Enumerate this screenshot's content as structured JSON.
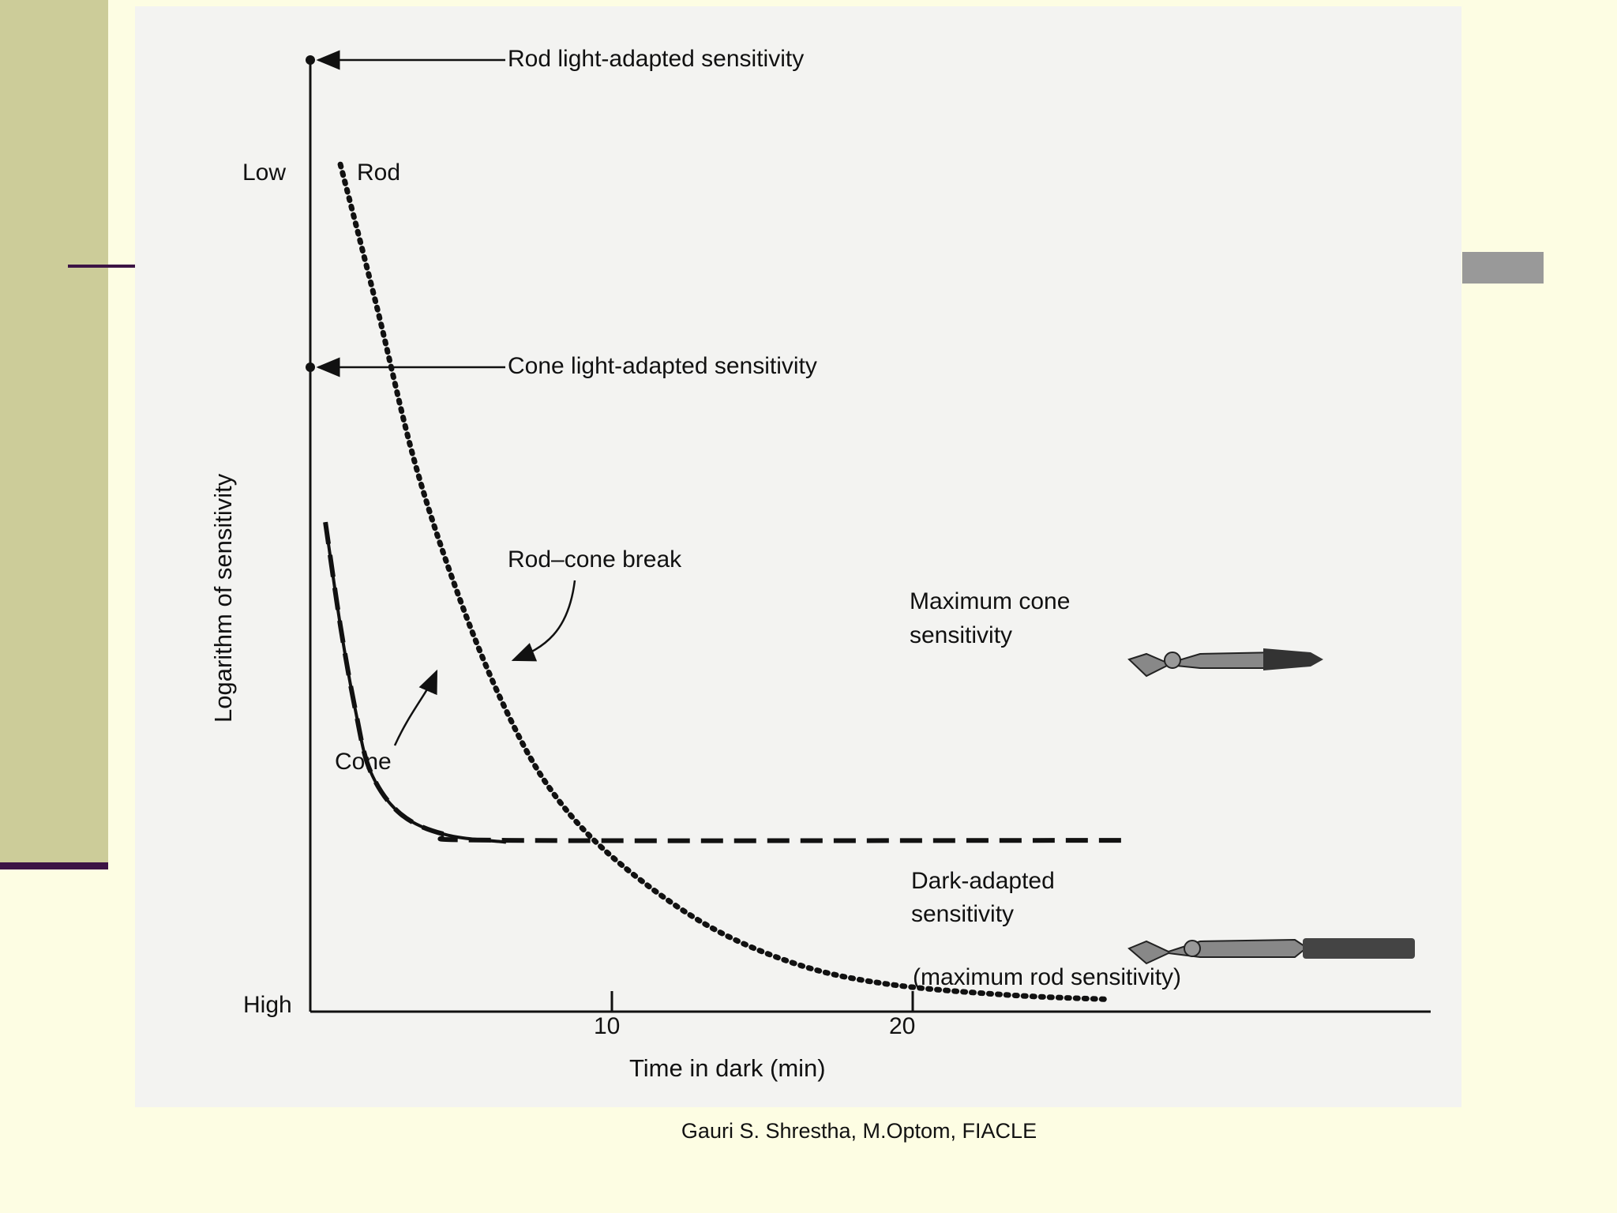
{
  "slide": {
    "credit": "Gauri S. Shrestha, M.Optom, FIACLE",
    "colors": {
      "background": "#fdfde3",
      "left_band": "#cccc99",
      "accent_line": "#3c1445",
      "gray_bar": "#999999"
    }
  },
  "chart_data": {
    "type": "line",
    "xlabel": "Time in dark (min)",
    "ylabel": "Logarithm of sensitivity",
    "x_ticks": [
      10,
      20
    ],
    "x_range": [
      0,
      30
    ],
    "y_range": [
      0,
      10
    ],
    "y_tick_labels": {
      "low": "Low",
      "high": "High"
    },
    "series": [
      {
        "name": "Rod",
        "style": "dotted",
        "points": [
          [
            1.0,
            9.0
          ],
          [
            2.2,
            7.5
          ],
          [
            3.5,
            5.8
          ],
          [
            5.0,
            4.35
          ],
          [
            6.5,
            3.2
          ],
          [
            8.0,
            2.35
          ],
          [
            10.0,
            1.65
          ],
          [
            13.0,
            0.95
          ],
          [
            16.0,
            0.52
          ],
          [
            19.0,
            0.3
          ],
          [
            23.0,
            0.18
          ],
          [
            26.5,
            0.13
          ]
        ]
      },
      {
        "name": "Cone",
        "style": "solid",
        "points": [
          [
            0.5,
            5.2
          ],
          [
            1.0,
            4.1
          ],
          [
            1.5,
            3.2
          ],
          [
            2.0,
            2.55
          ],
          [
            3.0,
            2.1
          ],
          [
            4.5,
            1.88
          ],
          [
            6.5,
            1.8
          ]
        ]
      },
      {
        "name": "Maximum cone sensitivity",
        "style": "dashed",
        "points": [
          [
            0.5,
            5.2
          ],
          [
            1.0,
            4.1
          ],
          [
            1.5,
            3.2
          ],
          [
            2.0,
            2.55
          ],
          [
            3.0,
            2.1
          ],
          [
            4.5,
            1.88
          ],
          [
            6.5,
            1.82
          ],
          [
            27.0,
            1.82
          ]
        ]
      }
    ],
    "annotations": [
      {
        "text": "Rod light-adapted sensitivity",
        "y": 9.5
      },
      {
        "text": "Cone light-adapted sensitivity",
        "y": 6.6
      },
      {
        "text": "Rod–cone break",
        "x": 6.6,
        "y": 1.8
      },
      {
        "text": "Maximum cone",
        "line2": "sensitivity"
      },
      {
        "text": "Dark-adapted",
        "line2": "sensitivity",
        "line3": "(maximum rod sensitivity)"
      },
      {
        "text": "Rod"
      },
      {
        "text": "Cone"
      }
    ]
  }
}
